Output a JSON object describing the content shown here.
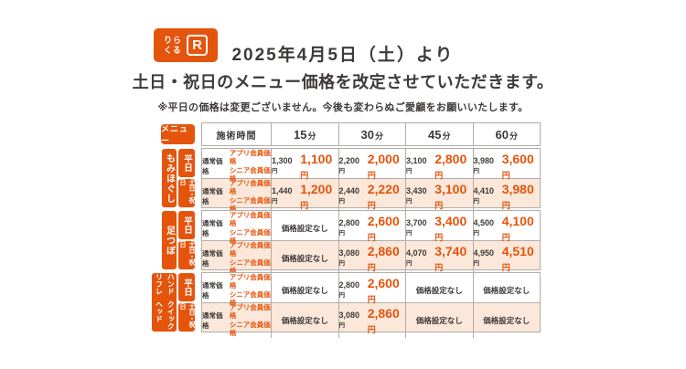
{
  "logo": {
    "line1": "りら",
    "line2": "くる",
    "mark": "R"
  },
  "headline": {
    "line1": "2025年4月5日（土）より",
    "line2": "土日・祝日のメニュー価格を改定させていただきます。",
    "note": "※平日の価格は変更ございません。今後も変わらぬご愛顧をお願いいたします。"
  },
  "table": {
    "menu_header": "メニュー",
    "time_header": "施術時間",
    "columns": [
      {
        "value": "15"
      },
      {
        "value": "30"
      },
      {
        "value": "45"
      },
      {
        "value": "60"
      }
    ],
    "units": {
      "min": "分",
      "yen": "円"
    },
    "price_labels": {
      "regular": "通常価格",
      "member1": "アプリ会員価格",
      "member2": "シニア会員価格"
    },
    "no_price": "価格設定なし",
    "groups": [
      {
        "name": "もみほぐし",
        "rows": [
          {
            "day": "平日",
            "prices": [
              {
                "regular": "1,300",
                "member": "1,100"
              },
              {
                "regular": "2,200",
                "member": "2,000"
              },
              {
                "regular": "3,100",
                "member": "2,800"
              },
              {
                "regular": "3,980",
                "member": "3,600"
              }
            ]
          },
          {
            "day": "土日・祝日",
            "prices": [
              {
                "regular": "1,440",
                "member": "1,200"
              },
              {
                "regular": "2,440",
                "member": "2,220"
              },
              {
                "regular": "3,430",
                "member": "3,100"
              },
              {
                "regular": "4,410",
                "member": "3,980"
              }
            ]
          }
        ]
      },
      {
        "name": "足つぼ",
        "rows": [
          {
            "day": "平日",
            "prices": [
              null,
              {
                "regular": "2,800",
                "member": "2,600"
              },
              {
                "regular": "3,700",
                "member": "3,400"
              },
              {
                "regular": "4,500",
                "member": "4,100"
              }
            ]
          },
          {
            "day": "土日・祝日",
            "prices": [
              null,
              {
                "regular": "3,080",
                "member": "2,860"
              },
              {
                "regular": "4,070",
                "member": "3,740"
              },
              {
                "regular": "4,950",
                "member": "4,510"
              }
            ]
          }
        ]
      },
      {
        "name_line1": "ハンドリフレ",
        "name_line2": "クイックヘッド",
        "rows": [
          {
            "day": "平日",
            "prices": [
              null,
              {
                "regular": "2,800",
                "member": "2,600"
              },
              null,
              null
            ]
          },
          {
            "day": "土日・祝日",
            "prices": [
              null,
              {
                "regular": "3,080",
                "member": "2,860"
              },
              null,
              null
            ]
          }
        ]
      }
    ]
  },
  "colors": {
    "brand_orange": "#e5540c",
    "holiday_row_bg": "#fbe8da",
    "text_dark": "#3e3a39",
    "border_gray": "#b2aca7"
  }
}
